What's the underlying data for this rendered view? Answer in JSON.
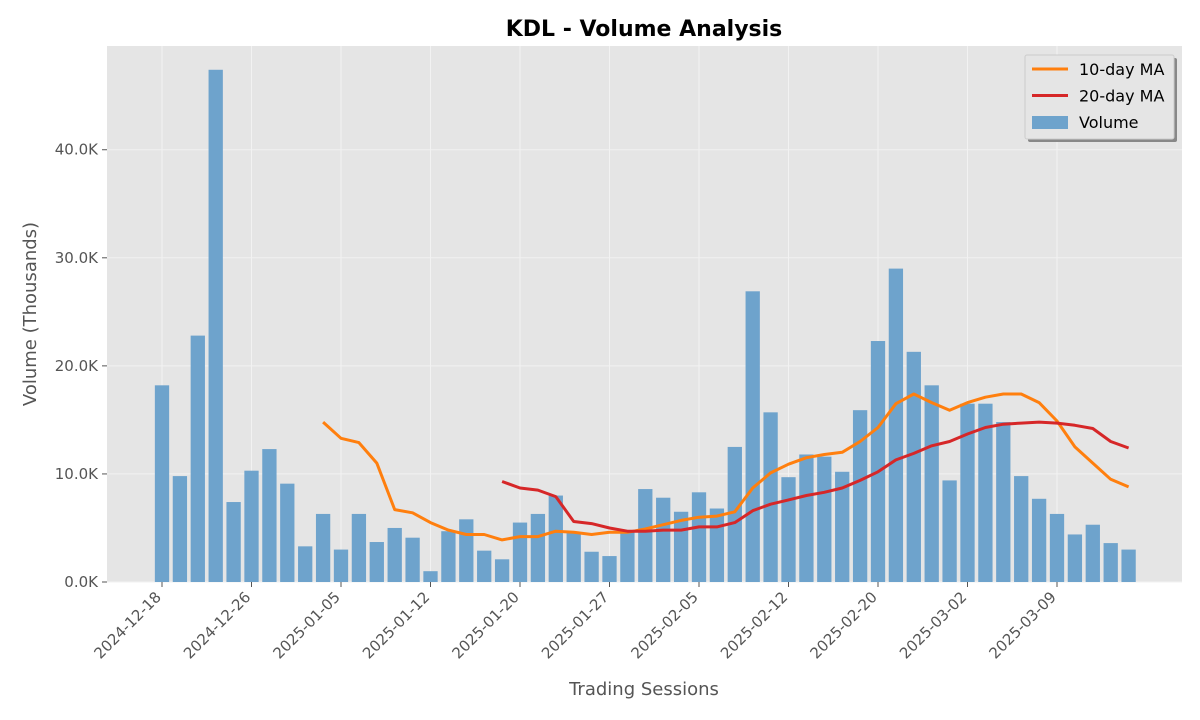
{
  "chart_data": {
    "type": "bar",
    "title": "KDL - Volume Analysis",
    "xlabel": "Trading Sessions",
    "ylabel": "Volume (Thousands)",
    "ylim": [
      0,
      49600
    ],
    "grid": true,
    "legend_position": "top-right",
    "y_ticks": [
      0,
      10000,
      20000,
      30000,
      40000
    ],
    "y_tick_labels": [
      "0.0K",
      "10.0K",
      "20.0K",
      "30.0K",
      "40.0K"
    ],
    "x_tick_labels": [
      {
        "index": 0,
        "label": "2024-12-18"
      },
      {
        "index": 5,
        "label": "2024-12-26"
      },
      {
        "index": 10,
        "label": "2025-01-05"
      },
      {
        "index": 15,
        "label": "2025-01-12"
      },
      {
        "index": 20,
        "label": "2025-01-20"
      },
      {
        "index": 25,
        "label": "2025-01-27"
      },
      {
        "index": 30,
        "label": "2025-02-05"
      },
      {
        "index": 35,
        "label": "2025-02-12"
      },
      {
        "index": 40,
        "label": "2025-02-20"
      },
      {
        "index": 45,
        "label": "2025-03-02"
      },
      {
        "index": 50,
        "label": "2025-03-09"
      }
    ],
    "series": [
      {
        "name": "Volume",
        "kind": "bar",
        "color": "#6ea3cc",
        "values": [
          18200,
          9800,
          22800,
          47400,
          7400,
          10300,
          12300,
          9100,
          3300,
          6300,
          3000,
          6300,
          3700,
          5000,
          4100,
          1000,
          4700,
          5800,
          2900,
          2100,
          5500,
          6300,
          8000,
          4600,
          2800,
          2400,
          4600,
          8600,
          7800,
          6500,
          8300,
          6800,
          12500,
          26900,
          15700,
          9700,
          11800,
          11600,
          10200,
          15900,
          22300,
          29000,
          21300,
          18200,
          9400,
          16500,
          16500,
          14800,
          9800,
          7700,
          6300,
          4400,
          5300,
          3600,
          3000
        ]
      },
      {
        "name": "10-day MA",
        "kind": "line",
        "color": "#ff7f0e",
        "start_index": 9,
        "values": [
          14800,
          13300,
          12900,
          11000,
          6700,
          6400,
          5500,
          4800,
          4400,
          4400,
          3900,
          4200,
          4200,
          4700,
          4600,
          4400,
          4600,
          4600,
          4900,
          5300,
          5700,
          6000,
          6100,
          6500,
          8700,
          10100,
          10900,
          11500,
          11800,
          12000,
          13000,
          14300,
          16500,
          17400,
          16600,
          15900,
          16600,
          17100,
          17400,
          17400,
          16600,
          14900,
          12500,
          11000,
          9500,
          8800
        ]
      },
      {
        "name": "20-day MA",
        "kind": "line",
        "color": "#d62728",
        "start_index": 19,
        "values": [
          9300,
          8700,
          8500,
          7900,
          5600,
          5400,
          5000,
          4700,
          4700,
          4800,
          4800,
          5100,
          5100,
          5500,
          6600,
          7200,
          7600,
          8000,
          8300,
          8700,
          9400,
          10200,
          11300,
          11900,
          12600,
          13000,
          13700,
          14300,
          14600,
          14700,
          14800,
          14700,
          14500,
          14200,
          13000,
          12400
        ]
      }
    ]
  }
}
